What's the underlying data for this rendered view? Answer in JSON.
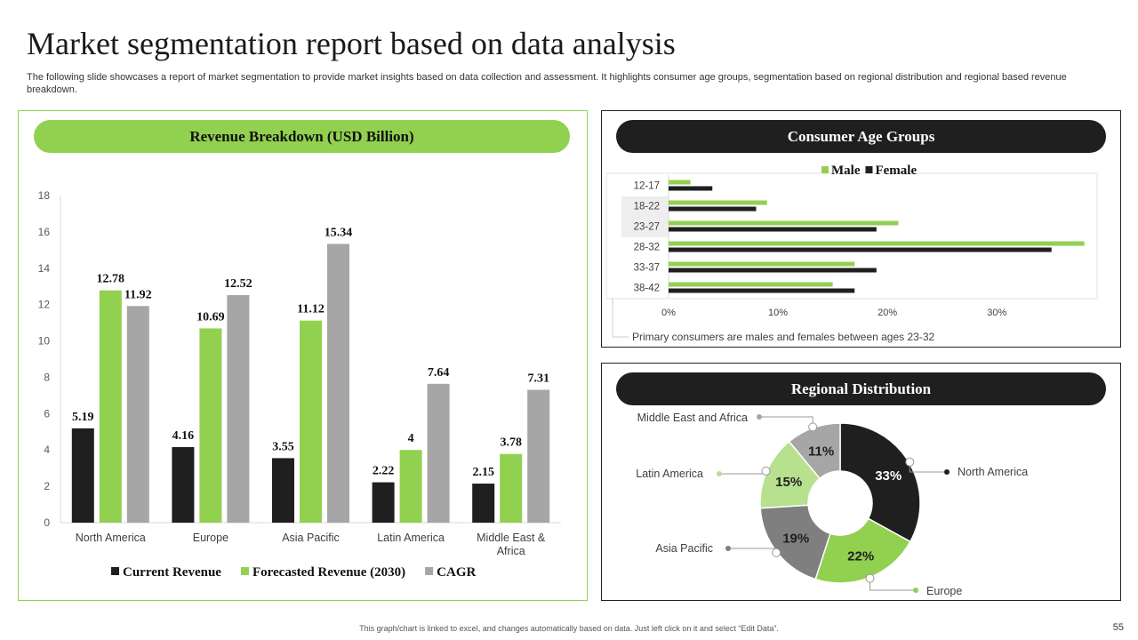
{
  "page": {
    "title": "Market segmentation report based on data analysis",
    "subtitle": "The following slide showcases a report of market segmentation to provide market insights based on data collection and assessment. It highlights consumer age groups, segmentation based on regional distribution and regional based revenue breakdown.",
    "footer": "This graph/chart is linked to excel, and changes automatically based on data. Just left click on it and select “Edit Data”.",
    "page_number": "55"
  },
  "colors": {
    "green": "#92d050",
    "black": "#1f1f1f",
    "gray": "#a6a6a6",
    "dark_gray": "#7f7f7f",
    "light_green": "#b7e08f"
  },
  "chart_data": [
    {
      "id": "revenue",
      "type": "bar",
      "title": "Revenue Breakdown (USD Billion)",
      "categories": [
        "North America",
        "Europe",
        "Asia Pacific",
        "Latin America",
        "Middle East & Africa"
      ],
      "category_lines": [
        [
          "North America"
        ],
        [
          "Europe"
        ],
        [
          "Asia Pacific"
        ],
        [
          "Latin America"
        ],
        [
          "Middle East &",
          "Africa"
        ]
      ],
      "series": [
        {
          "name": "Current Revenue",
          "color": "#1f1f1f",
          "values": [
            5.19,
            4.16,
            3.55,
            2.22,
            2.15
          ]
        },
        {
          "name": "Forecasted Revenue (2030)",
          "color": "#92d050",
          "values": [
            12.78,
            10.69,
            11.12,
            4,
            3.78
          ]
        },
        {
          "name": "CAGR",
          "color": "#a6a6a6",
          "values": [
            11.92,
            12.52,
            15.34,
            7.64,
            7.31
          ]
        }
      ],
      "ylim": [
        0,
        18
      ],
      "yticks": [
        0,
        2,
        4,
        6,
        8,
        10,
        12,
        14,
        16,
        18
      ],
      "legend": "bottom"
    },
    {
      "id": "age",
      "type": "bar",
      "orientation": "horizontal",
      "title": "Consumer Age Groups",
      "categories": [
        "12-17",
        "18-22",
        "23-27",
        "28-32",
        "33-37",
        "38-42"
      ],
      "series": [
        {
          "name": "Male",
          "color": "#92d050",
          "values": [
            2,
            9,
            21,
            38,
            17,
            15
          ]
        },
        {
          "name": "Female",
          "color": "#1f1f1f",
          "values": [
            4,
            8,
            19,
            35,
            19,
            17
          ]
        }
      ],
      "xlim": [
        0,
        39
      ],
      "xticks": [
        0,
        10,
        20,
        30
      ],
      "xtick_labels": [
        "0%",
        "10%",
        "20%",
        "30%"
      ],
      "legend": "top",
      "note": "Primary consumers are males and females between ages 23-32"
    },
    {
      "id": "region",
      "type": "pie",
      "donut": true,
      "title": "Regional Distribution",
      "slices": [
        {
          "label": "North America",
          "value": 33,
          "display": "33%",
          "color": "#1f1f1f",
          "text_color": "#ffffff"
        },
        {
          "label": "Europe",
          "value": 22,
          "display": "22%",
          "color": "#92d050",
          "text_color": "#1f1f1f"
        },
        {
          "label": "Asia Pacific",
          "value": 19,
          "display": "19%",
          "color": "#7f7f7f",
          "text_color": "#1f1f1f"
        },
        {
          "label": "Latin America",
          "value": 15,
          "display": "15%",
          "color": "#b7e08f",
          "text_color": "#1f1f1f"
        },
        {
          "label": "Middle East and Africa",
          "value": 11,
          "display": "11%",
          "color": "#a6a6a6",
          "text_color": "#1f1f1f"
        }
      ]
    }
  ]
}
